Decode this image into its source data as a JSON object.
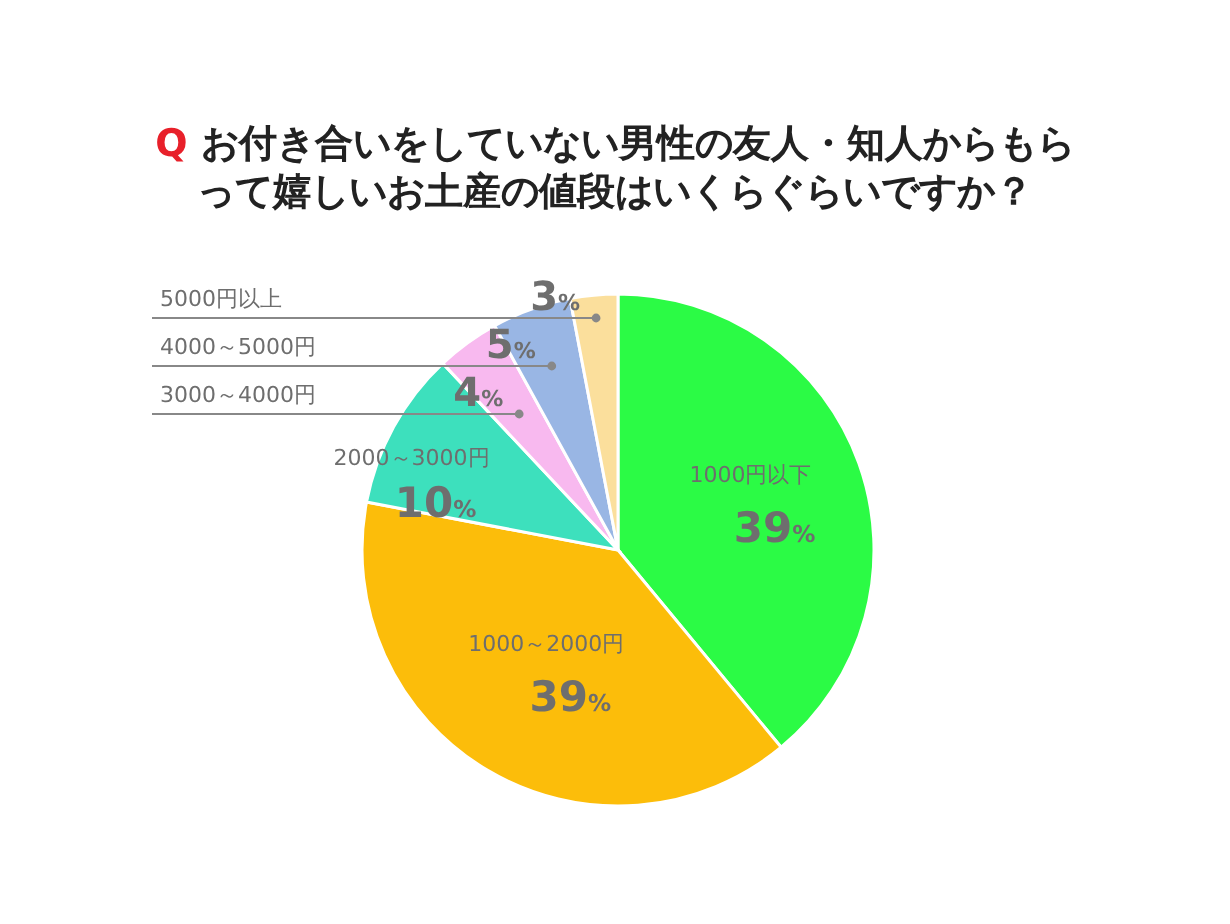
{
  "chart_data": {
    "type": "pie",
    "title": "Q お付き合いをしていない男性の友人・知人からもらって嬉しいお土産の値段はいくらぐらいですか？",
    "categories": [
      "1000円以下",
      "1000～2000円",
      "2000～3000円",
      "3000～4000円",
      "4000～5000円",
      "5000円以上"
    ],
    "values": [
      39,
      39,
      10,
      4,
      5,
      3
    ],
    "colors": [
      "#2bfb45",
      "#fcbd0a",
      "#3de0bd",
      "#f8b9ef",
      "#99b6e4",
      "#fbdf9c"
    ],
    "value_labels": [
      "39%",
      "39%",
      "10%",
      "4%",
      "5%",
      "3%"
    ],
    "legend": false
  }
}
